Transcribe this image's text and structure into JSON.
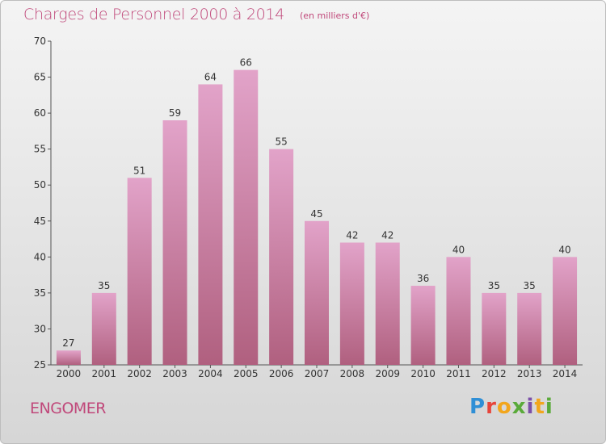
{
  "title": "Charges de Personnel 2000 à 2014",
  "subtitle": "(en milliers d'€)",
  "town": "ENGOMER",
  "brand": "Proxiti",
  "colors": {
    "accent": "#c0487a",
    "bar_top": "#e2a3c9",
    "bar_bottom": "#b0607f"
  },
  "chart_data": {
    "type": "bar",
    "title": "Charges de Personnel 2000 à 2014",
    "subtitle": "(en milliers d'€)",
    "categories": [
      "2000",
      "2001",
      "2002",
      "2003",
      "2004",
      "2005",
      "2006",
      "2007",
      "2008",
      "2009",
      "2010",
      "2011",
      "2012",
      "2013",
      "2014"
    ],
    "values": [
      27,
      35,
      51,
      59,
      64,
      66,
      55,
      45,
      42,
      42,
      36,
      40,
      35,
      35,
      40
    ],
    "ylim": [
      25,
      70
    ],
    "yticks": [
      25,
      30,
      35,
      40,
      45,
      50,
      55,
      60,
      65,
      70
    ],
    "grid": false,
    "legend": "none"
  }
}
